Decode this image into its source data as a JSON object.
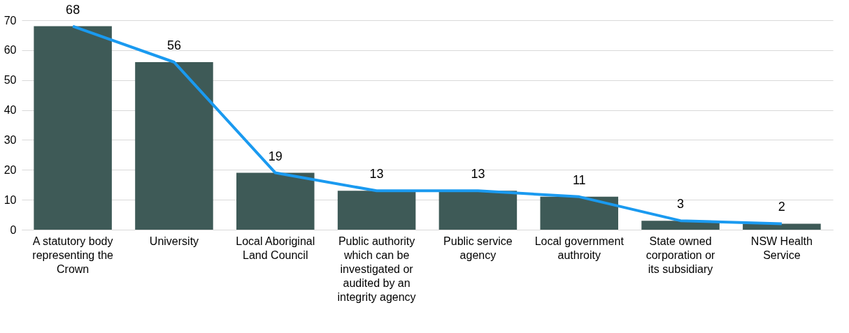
{
  "chart_data": {
    "type": "bar",
    "categories": [
      "A statutory body representing the Crown",
      "University",
      "Local Aboriginal Land Council",
      "Public authority which can be investigated or audited by an integrity agency",
      "Public service agency",
      "Local government authroity",
      "State owned corporation or its subsidiary",
      "NSW Health Service"
    ],
    "series": [
      {
        "color": "#3e5a57",
        "values": [
          68,
          56,
          19,
          13,
          13,
          11,
          3,
          2
        ],
        "value_labels": [
          "68",
          "56",
          "19",
          "13",
          "13",
          "11",
          "3",
          "2"
        ]
      },
      {
        "type": "line",
        "color": "#1a9af0",
        "values": [
          68,
          56,
          19,
          13,
          13,
          11,
          3,
          2
        ]
      }
    ],
    "ylim": [
      0,
      70
    ],
    "yticks": [
      0,
      10,
      20,
      30,
      40,
      50,
      60,
      70
    ],
    "grid": "y"
  }
}
